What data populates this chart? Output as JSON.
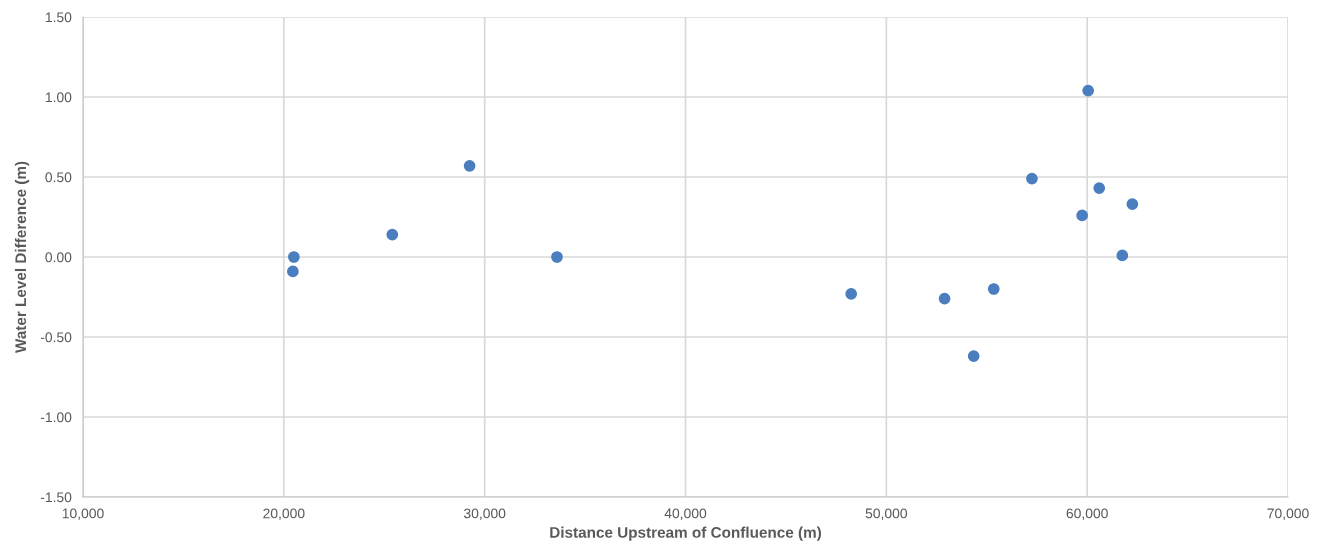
{
  "chart_data": {
    "type": "scatter",
    "xlabel": "Distance Upstream of Confluence (m)",
    "ylabel": "Water Level Difference (m)",
    "series": [
      {
        "color": "#4a7ebf",
        "x": [
          20500,
          20450,
          25400,
          29250,
          33600,
          48250,
          52900,
          55350,
          54350,
          57250,
          60050,
          60600,
          59750,
          62250,
          61750
        ],
        "values": [
          0.0,
          -0.09,
          0.14,
          0.57,
          0.0,
          -0.23,
          -0.26,
          -0.2,
          -0.62,
          0.49,
          1.04,
          0.43,
          0.26,
          0.33,
          0.01
        ]
      }
    ],
    "xlim": [
      10000,
      70000
    ],
    "xticks": [
      {
        "value": 10000,
        "label": "10,000"
      },
      {
        "value": 20000,
        "label": "20,000"
      },
      {
        "value": 30000,
        "label": "30,000"
      },
      {
        "value": 40000,
        "label": "40,000"
      },
      {
        "value": 50000,
        "label": "50,000"
      },
      {
        "value": 60000,
        "label": "60,000"
      },
      {
        "value": 70000,
        "label": "70,000"
      }
    ],
    "ylim": [
      -1.5,
      1.5
    ],
    "yticks": [
      {
        "value": -1.5,
        "label": "-1.50"
      },
      {
        "value": -1.0,
        "label": "-1.00"
      },
      {
        "value": -0.5,
        "label": "-0.50"
      },
      {
        "value": 0,
        "label": "0.00"
      },
      {
        "value": 0.5,
        "label": "0.50"
      },
      {
        "value": 1.0,
        "label": "1.00"
      },
      {
        "value": 1.5,
        "label": "1.50"
      }
    ],
    "grid": true,
    "marker": "circle"
  }
}
